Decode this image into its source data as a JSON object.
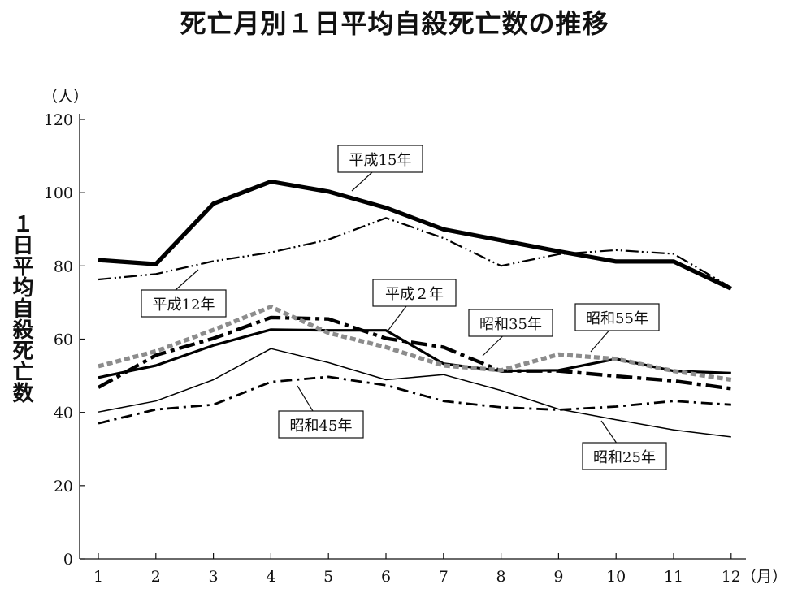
{
  "chart_data": {
    "type": "line",
    "title": "死亡月別１日平均自殺死亡数の推移",
    "ylabel": "１日平均自殺死亡数",
    "yunit": "（人）",
    "xunit": "（月）",
    "ylim": [
      0,
      120
    ],
    "yticks": [
      "0",
      "20",
      "40",
      "60",
      "80",
      "100",
      "120"
    ],
    "categories": [
      "1",
      "2",
      "3",
      "4",
      "5",
      "6",
      "7",
      "8",
      "9",
      "10",
      "11",
      "12"
    ],
    "series": [
      {
        "name": "平成15年",
        "values": [
          81.6,
          80.5,
          97,
          103,
          100.3,
          95.9,
          90,
          87,
          84,
          81.2,
          81.2,
          73.8
        ]
      },
      {
        "name": "平成12年",
        "values": [
          76.3,
          77.8,
          81.3,
          83.7,
          87.2,
          93.1,
          87.6,
          80,
          83.2,
          84.3,
          83.3,
          74.1
        ]
      },
      {
        "name": "平成２年",
        "values": [
          49.5,
          52.8,
          58.3,
          62.6,
          62.4,
          62.4,
          53.3,
          51.3,
          51.5,
          54.6,
          51.3,
          50.7
        ]
      },
      {
        "name": "昭和35年",
        "values": [
          46.8,
          55.6,
          60.2,
          65.9,
          65.5,
          60.2,
          57.8,
          51.3,
          51.3,
          49.9,
          48.6,
          46.5
        ]
      },
      {
        "name": "昭和55年",
        "values": [
          52.6,
          56.7,
          62.5,
          68.8,
          61.7,
          57.8,
          52.8,
          51.5,
          55.8,
          54.6,
          51.3,
          48.9
        ]
      },
      {
        "name": "昭和45年",
        "values": [
          37,
          40.8,
          42.1,
          48.3,
          49.7,
          47.4,
          43.1,
          41.4,
          40.7,
          41.6,
          43.1,
          42.1
        ]
      },
      {
        "name": "昭和25年",
        "values": [
          40.1,
          43.1,
          48.9,
          57.4,
          53.6,
          48.9,
          50.3,
          46,
          40.9,
          38,
          35.2,
          33.3
        ]
      }
    ],
    "colors": {
      "平成15年": "#000000",
      "平成12年": "#000000",
      "平成２年": "#000000",
      "昭和35年": "#000000",
      "昭和55年": "#8c8c8c",
      "昭和45年": "#000000",
      "昭和25年": "#000000"
    }
  }
}
